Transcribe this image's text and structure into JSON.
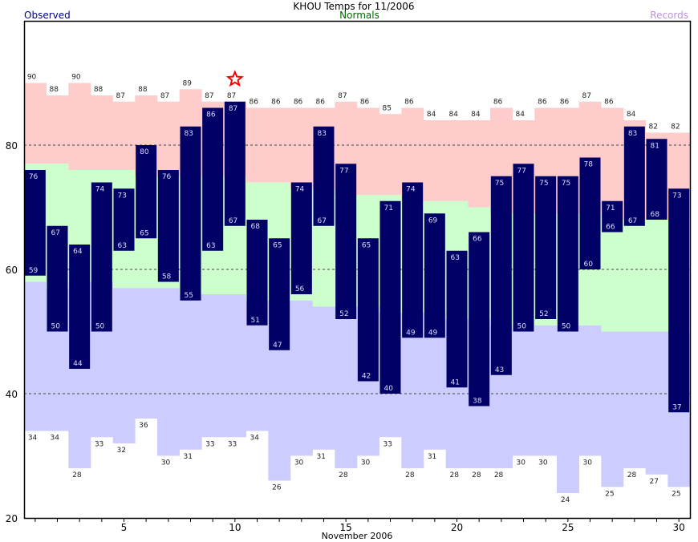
{
  "chart_data": {
    "type": "bar",
    "title": "KHOU Temps for 11/2006",
    "legend": {
      "observed": "Observed",
      "normals": "Normals",
      "records": "Records"
    },
    "xlabel": "November 2006",
    "ylabel": "",
    "xlim": [
      0.5,
      30.5
    ],
    "ylim": [
      20,
      100
    ],
    "x_ticks": [
      5,
      10,
      15,
      20,
      25,
      30
    ],
    "y_ticks": [
      20,
      40,
      60,
      80
    ],
    "grid_lines": [
      40,
      60,
      80
    ],
    "days": [
      1,
      2,
      3,
      4,
      5,
      6,
      7,
      8,
      9,
      10,
      11,
      12,
      13,
      14,
      15,
      16,
      17,
      18,
      19,
      20,
      21,
      22,
      23,
      24,
      25,
      26,
      27,
      28,
      29,
      30
    ],
    "series": [
      {
        "name": "Record High",
        "values": [
          90,
          88,
          90,
          88,
          87,
          88,
          87,
          89,
          87,
          87,
          86,
          86,
          86,
          86,
          87,
          86,
          85,
          86,
          84,
          84,
          84,
          86,
          84,
          86,
          86,
          87,
          86,
          84,
          82,
          82
        ]
      },
      {
        "name": "Normal High",
        "values": [
          77,
          77,
          76,
          76,
          76,
          75,
          75,
          75,
          75,
          75,
          74,
          74,
          73,
          73,
          72,
          72,
          72,
          71,
          71,
          71,
          70,
          69,
          69,
          69,
          69,
          69,
          68,
          68,
          68,
          68
        ]
      },
      {
        "name": "Normal Low",
        "values": [
          58,
          57,
          58,
          58,
          57,
          57,
          57,
          56,
          56,
          56,
          55,
          55,
          55,
          54,
          54,
          54,
          53,
          53,
          53,
          52,
          52,
          51,
          50,
          51,
          51,
          51,
          50,
          50,
          50,
          50
        ]
      },
      {
        "name": "Record Low",
        "values": [
          34,
          34,
          28,
          33,
          32,
          36,
          30,
          31,
          33,
          33,
          34,
          26,
          30,
          31,
          28,
          30,
          33,
          28,
          31,
          28,
          28,
          28,
          30,
          30,
          24,
          30,
          25,
          28,
          27,
          25
        ]
      },
      {
        "name": "Observed High",
        "values": [
          76,
          67,
          64,
          74,
          73,
          80,
          76,
          83,
          86,
          87,
          68,
          65,
          74,
          83,
          77,
          65,
          71,
          74,
          69,
          63,
          66,
          75,
          77,
          75,
          75,
          78,
          71,
          83,
          81,
          73
        ]
      },
      {
        "name": "Observed Low",
        "values": [
          59,
          50,
          44,
          50,
          63,
          65,
          58,
          55,
          63,
          67,
          51,
          47,
          56,
          67,
          52,
          42,
          40,
          49,
          49,
          41,
          38,
          43,
          50,
          52,
          50,
          60,
          66,
          67,
          68,
          37
        ]
      }
    ],
    "record_markers": [
      10
    ],
    "colors": {
      "record": "#ffcccc",
      "normal": "#ccffcc",
      "low": "#ccccff",
      "observed": "#000066",
      "observed_legend": "#000080",
      "normals_legend": "#006600",
      "records_legend": "#ff8080"
    }
  }
}
